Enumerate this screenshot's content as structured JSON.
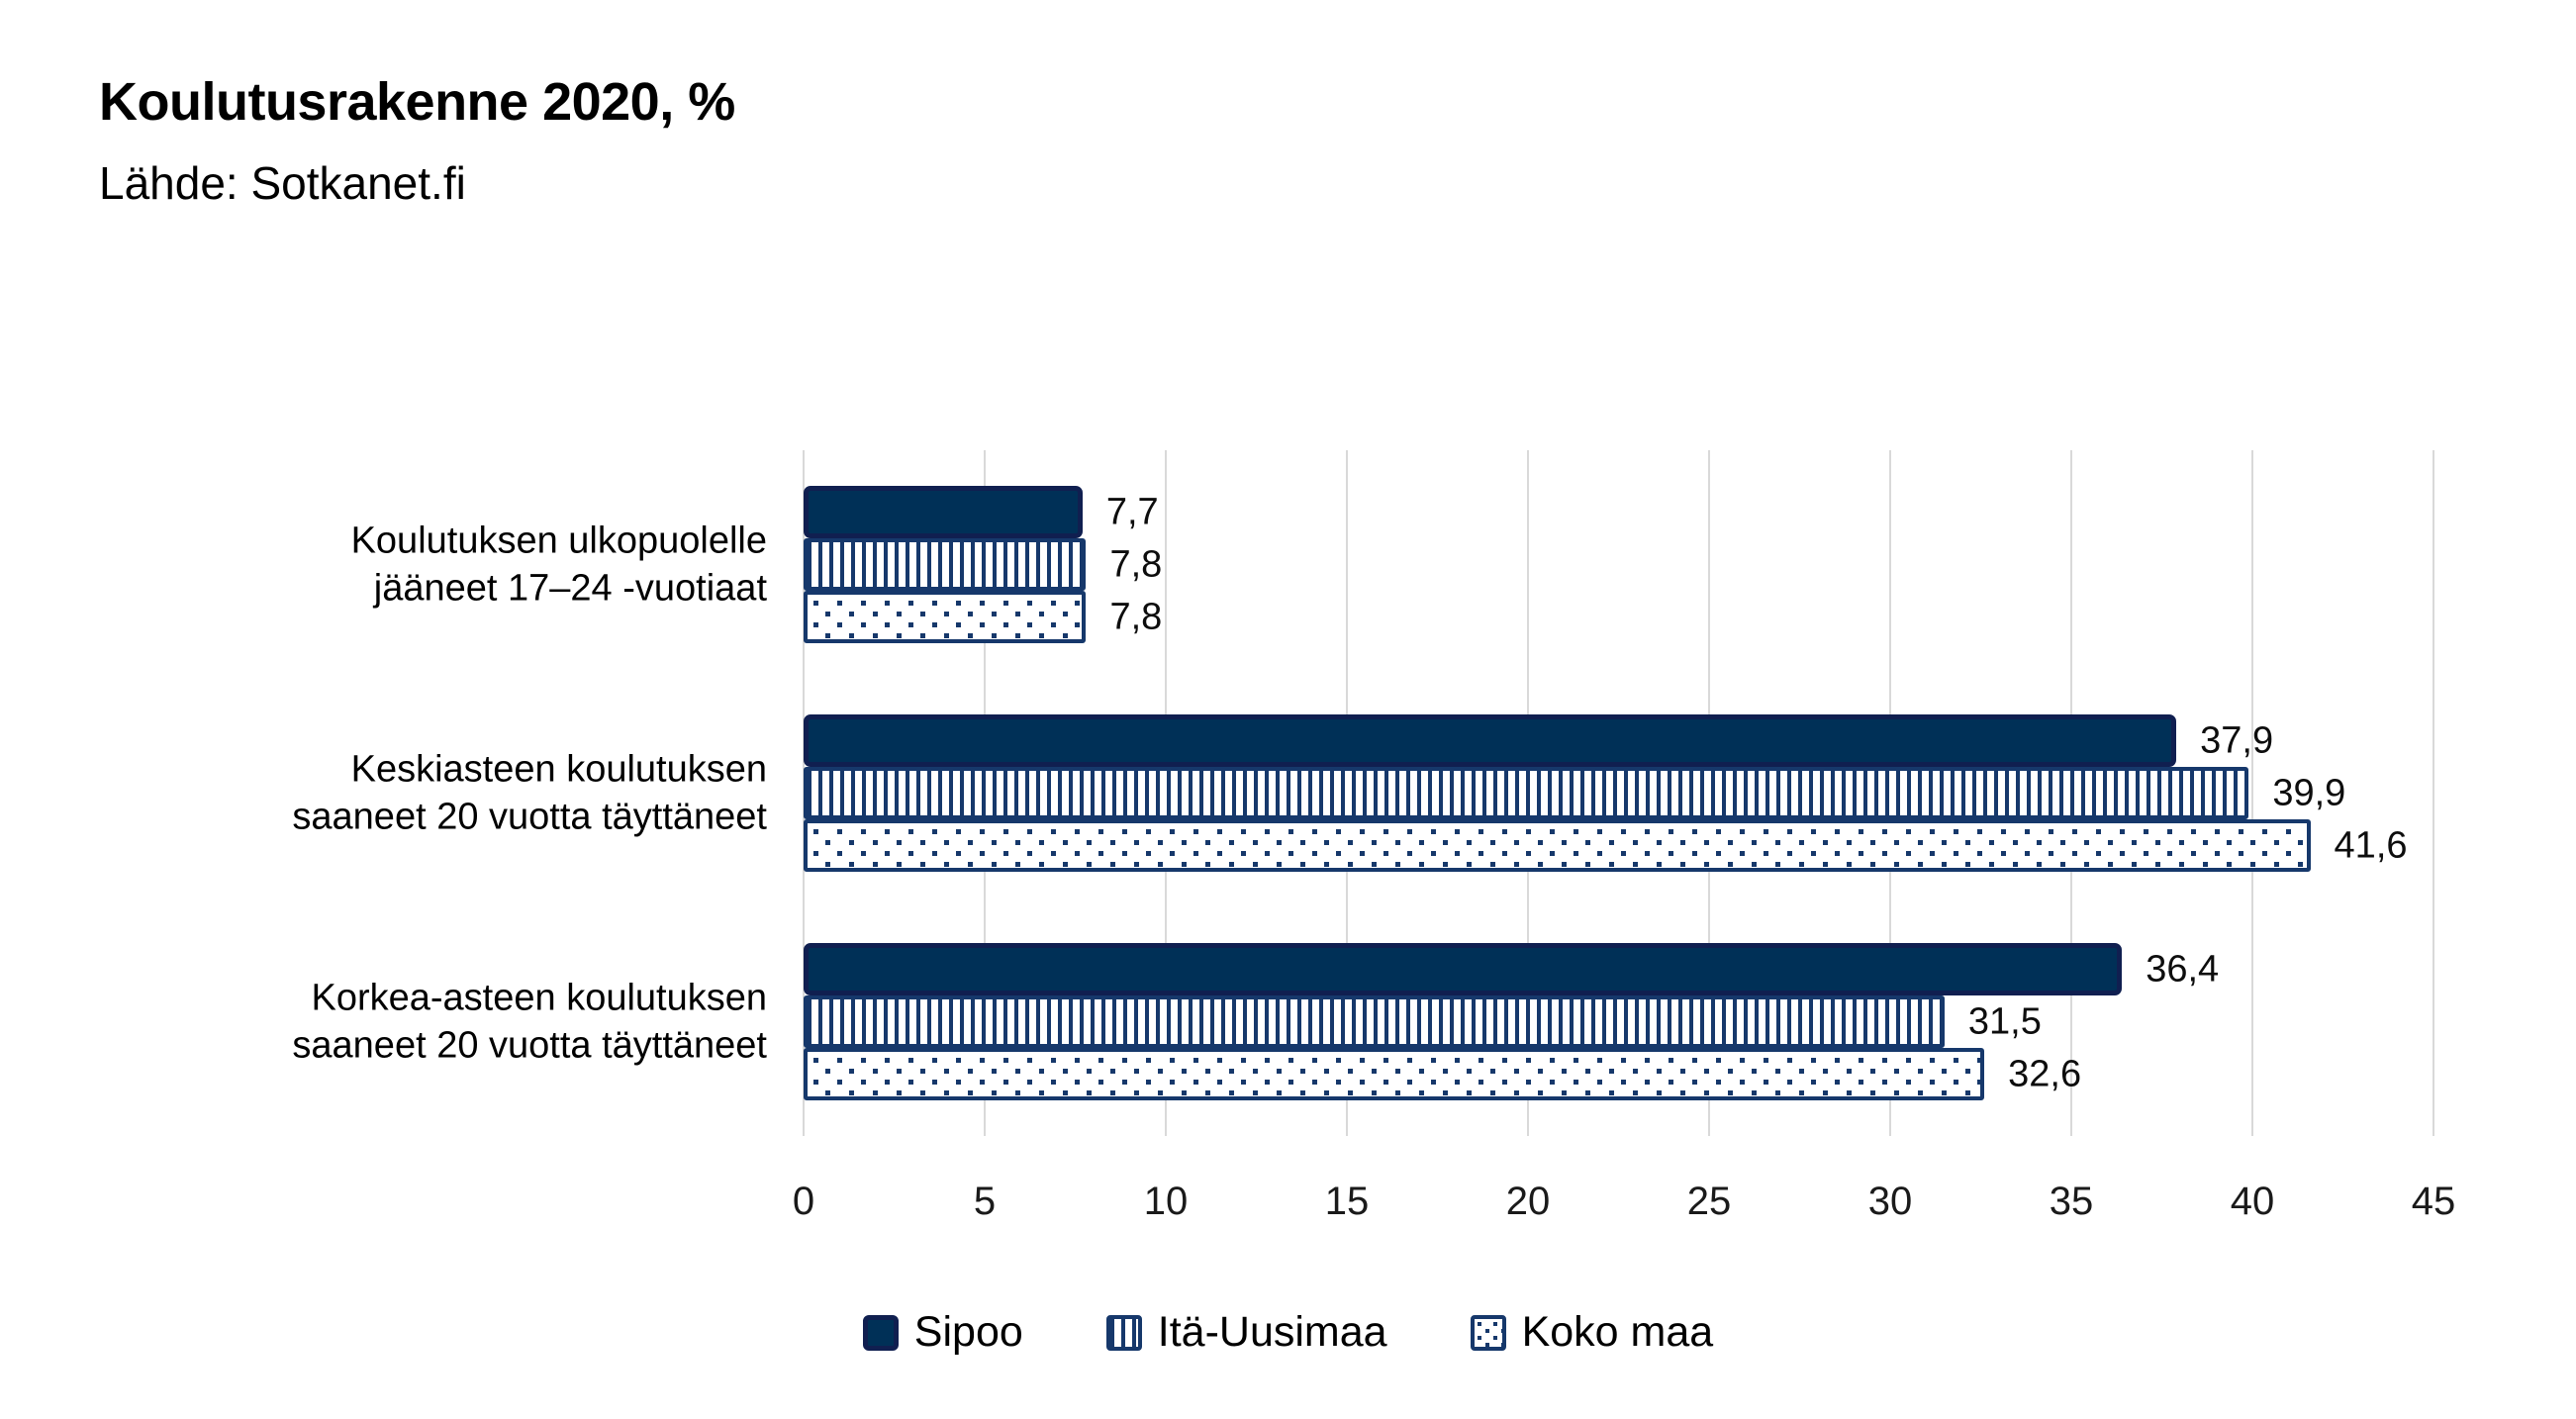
{
  "title": "Koulutusrakenne 2020, %",
  "subtitle": "Lähde: Sotkanet.fi",
  "chart_data": {
    "type": "bar",
    "orientation": "horizontal",
    "title": "Koulutusrakenne 2020, %",
    "subtitle": "Lähde: Sotkanet.fi",
    "categories": [
      [
        "Koulutuksen ulkopuolelle",
        "jääneet 17–24 -vuotiaat"
      ],
      [
        "Keskiasteen koulutuksen",
        "saaneet 20 vuotta täyttäneet"
      ],
      [
        "Korkea-asteen koulutuksen",
        "saaneet 20 vuotta täyttäneet"
      ]
    ],
    "series": [
      {
        "name": "Sipoo",
        "style": "solid",
        "values": [
          7.7,
          37.9,
          36.4
        ],
        "labels": [
          "7,7",
          "37,9",
          "36,4"
        ]
      },
      {
        "name": "Itä-Uusimaa",
        "style": "stripes",
        "values": [
          7.8,
          39.9,
          31.5
        ],
        "labels": [
          "7,8",
          "39,9",
          "31,5"
        ]
      },
      {
        "name": "Koko maa",
        "style": "dots",
        "values": [
          7.8,
          41.6,
          32.6
        ],
        "labels": [
          "7,8",
          "41,6",
          "32,6"
        ]
      }
    ],
    "xlim": [
      0,
      45
    ],
    "xticks": [
      0,
      5,
      10,
      15,
      20,
      25,
      30,
      35,
      40,
      45
    ],
    "grid": "vertical",
    "legend_position": "bottom",
    "colors": {
      "solid_fill": "#003057",
      "solid_border": "#101f50",
      "pattern_navy": "#16386b",
      "gridline": "#d9d9d9",
      "text": "#000000",
      "background": "#ffffff"
    }
  }
}
